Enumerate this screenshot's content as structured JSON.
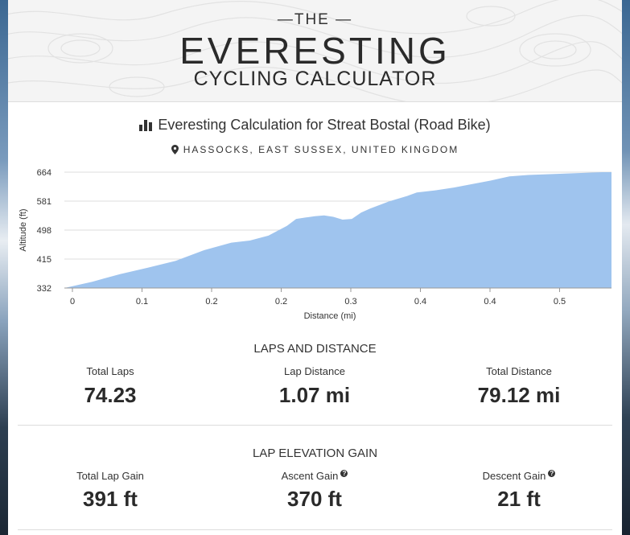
{
  "header": {
    "the_label": "—THE —",
    "title": "EVERESTING",
    "subtitle": "CYCLING CALCULATOR"
  },
  "calculation": {
    "title": "Everesting Calculation for Streat Bostal (Road Bike)",
    "title_icon": "bar-chart-icon",
    "location": "HASSOCKS, EAST SUSSEX, UNITED KINGDOM",
    "location_icon": "map-pin-icon"
  },
  "chart_data": {
    "type": "area",
    "xlabel": "Distance (mi)",
    "ylabel": "Altitude (ft)",
    "x_ticks": [
      "0",
      "0.1",
      "0.2",
      "0.2",
      "0.3",
      "0.4",
      "0.4",
      "0.5"
    ],
    "y_ticks": [
      "664",
      "581",
      "498",
      "415",
      "332"
    ],
    "ylim": [
      332,
      664
    ],
    "xlim": [
      0,
      0.59
    ],
    "grid": true,
    "fill_color": "#9fc4ee",
    "x": [
      0,
      0.03,
      0.06,
      0.09,
      0.12,
      0.15,
      0.18,
      0.2,
      0.22,
      0.24,
      0.25,
      0.27,
      0.28,
      0.29,
      0.3,
      0.31,
      0.32,
      0.33,
      0.34,
      0.35,
      0.37,
      0.38,
      0.4,
      0.42,
      0.44,
      0.46,
      0.47,
      0.48,
      0.5,
      0.52,
      0.54,
      0.56,
      0.58,
      0.59
    ],
    "y": [
      332,
      350,
      372,
      390,
      410,
      440,
      462,
      468,
      482,
      510,
      530,
      538,
      540,
      536,
      528,
      530,
      548,
      560,
      570,
      580,
      596,
      606,
      612,
      620,
      630,
      640,
      646,
      652,
      656,
      658,
      660,
      662,
      664,
      664
    ]
  },
  "laps_and_distance": {
    "title": "LAPS AND DISTANCE",
    "total_laps_label": "Total Laps",
    "total_laps_value": "74.23",
    "lap_distance_label": "Lap Distance",
    "lap_distance_value": "1.07 mi",
    "total_distance_label": "Total Distance",
    "total_distance_value": "79.12 mi"
  },
  "lap_elevation_gain": {
    "title": "LAP ELEVATION GAIN",
    "total_lap_gain_label": "Total Lap Gain",
    "total_lap_gain_value": "391 ft",
    "ascent_gain_label": "Ascent Gain",
    "ascent_gain_value": "370 ft",
    "descent_gain_label": "Descent Gain",
    "descent_gain_value": "21 ft",
    "help_icon": "question-circle-icon"
  }
}
